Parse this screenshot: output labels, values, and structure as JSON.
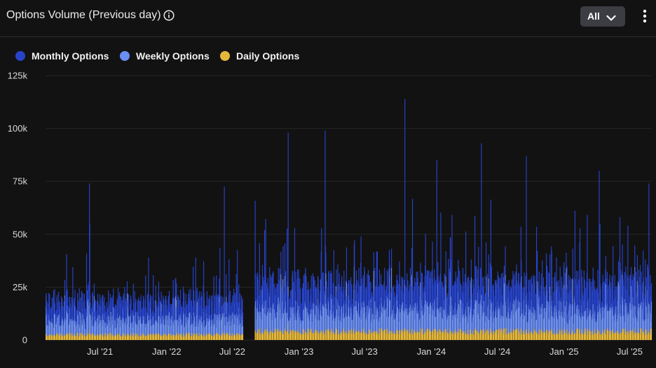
{
  "header": {
    "title": "Options Volume (Previous day)",
    "info_icon": "info-circle-icon",
    "range_select_value": "All",
    "range_chevron_icon": "chevron-down-icon",
    "menu_icon": "vertical-ellipsis-icon"
  },
  "colors": {
    "background": "#121212",
    "monthly": "#2743c9",
    "weekly": "#6b8ef2",
    "daily": "#e4b73b",
    "grid": "#262626",
    "axis_text": "#dadada"
  },
  "chart_data": {
    "type": "bar",
    "stacked": true,
    "title": "Options Volume (Previous day)",
    "xlabel": "",
    "ylabel": "",
    "ylim": [
      0,
      125000
    ],
    "y_ticks": [
      0,
      25000,
      50000,
      75000,
      100000,
      125000
    ],
    "y_tick_labels": [
      "0",
      "25k",
      "50k",
      "75k",
      "100k",
      "125k"
    ],
    "x_tick_labels": [
      "Jul '21",
      "Jan '22",
      "Jul '22",
      "Jan '23",
      "Jul '23",
      "Jan '24",
      "Jul '24",
      "Jan '25",
      "Jul '25"
    ],
    "x_tick_dates": [
      "2021-07-01",
      "2022-01-01",
      "2022-07-01",
      "2023-01-01",
      "2023-07-01",
      "2024-01-01",
      "2024-07-01",
      "2025-01-01",
      "2025-07-01"
    ],
    "date_range": [
      "2021-02-01",
      "2025-08-31"
    ],
    "data_gap": [
      "2022-08-01",
      "2022-08-31"
    ],
    "grid": true,
    "legend_position": "top-left",
    "series": [
      {
        "name": "Monthly Options",
        "color": "#2743c9",
        "typical": 8000
      },
      {
        "name": "Weekly Options",
        "color": "#6b8ef2",
        "typical": 8000
      },
      {
        "name": "Daily Options",
        "color": "#e4b73b",
        "typical": 2500
      }
    ],
    "notable_peaks": [
      {
        "date": "2021-06-01",
        "total": 74000
      },
      {
        "date": "2021-06-02",
        "total": 55000
      },
      {
        "date": "2022-06-08",
        "total": 72500
      },
      {
        "date": "2022-12-01",
        "total": 98000
      },
      {
        "date": "2023-03-13",
        "total": 99000
      },
      {
        "date": "2023-10-19",
        "total": 114000
      },
      {
        "date": "2024-01-15",
        "total": 85000
      },
      {
        "date": "2024-05-17",
        "total": 93000
      },
      {
        "date": "2024-09-18",
        "total": 87000
      },
      {
        "date": "2025-04-07",
        "total": 80000
      },
      {
        "date": "2025-08-22",
        "total": 74000
      }
    ]
  },
  "legend": [
    {
      "label": "Monthly Options",
      "color": "#2743c9"
    },
    {
      "label": "Weekly Options",
      "color": "#6b8ef2"
    },
    {
      "label": "Daily Options",
      "color": "#e4b73b"
    }
  ]
}
